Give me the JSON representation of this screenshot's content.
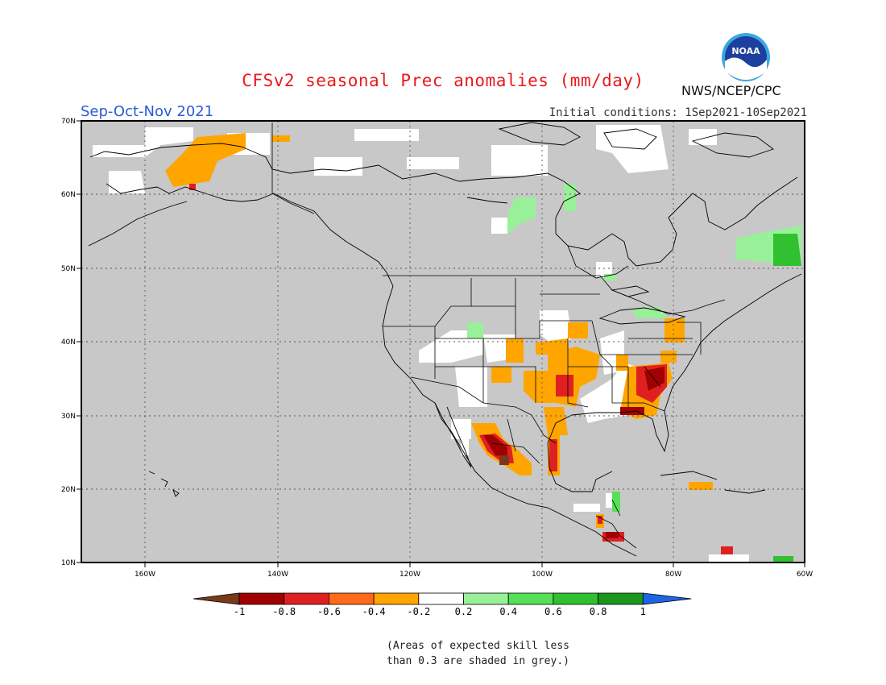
{
  "header": {
    "title": "CFSv2 seasonal Prec anomalies (mm/day)",
    "season": "Sep-Oct-Nov 2021",
    "initial_conditions": "Initial conditions: 1Sep2021-10Sep2021",
    "agency": "NWS/NCEP/CPC",
    "logo_text": "NOAA"
  },
  "map": {
    "lat_labels": [
      "70N",
      "60N",
      "50N",
      "40N",
      "30N",
      "20N",
      "10N"
    ],
    "lon_labels": [
      "160W",
      "140W",
      "120W",
      "100W",
      "80W",
      "60W"
    ],
    "background_color": "#c8c8c8"
  },
  "legend": {
    "tick_labels": [
      "-1",
      "-0.8",
      "-0.6",
      "-0.4",
      "-0.2",
      "0.2",
      "0.4",
      "0.6",
      "0.8",
      "1"
    ],
    "colors": [
      "#7a3a1a",
      "#a00000",
      "#e02020",
      "#ff6a1a",
      "#ffa500",
      "#ffffff",
      "#98f098",
      "#56e056",
      "#30c030",
      "#1c961c",
      "#1e64e6"
    ]
  },
  "footnote": {
    "line1": "(Areas of expected skill less",
    "line2": "than 0.3 are shaded in grey.)"
  }
}
